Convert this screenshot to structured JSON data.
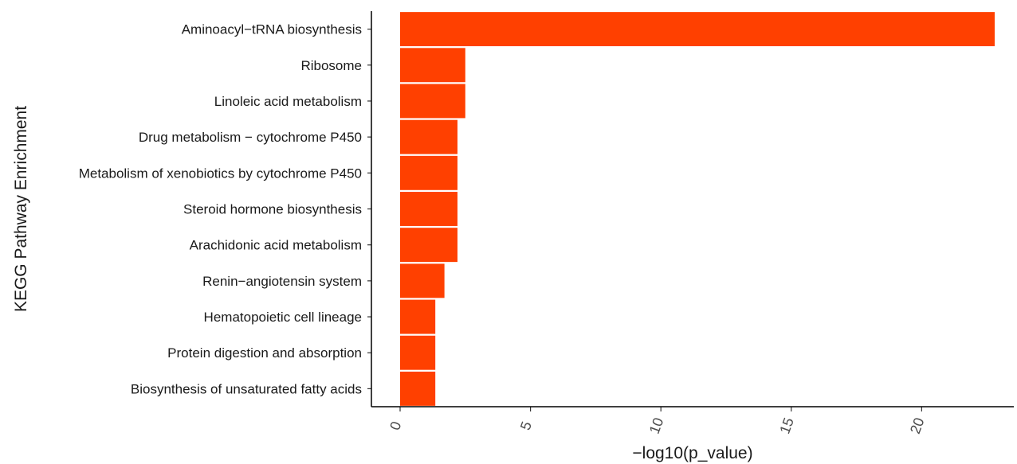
{
  "chart_data": {
    "type": "bar",
    "orientation": "horizontal",
    "categories": [
      "Aminoacyl−tRNA biosynthesis",
      "Ribosome",
      "Linoleic acid metabolism",
      "Drug metabolism − cytochrome P450",
      "Metabolism of xenobiotics by cytochrome P450",
      "Steroid hormone biosynthesis",
      "Arachidonic acid metabolism",
      "Renin−angiotensin system",
      "Hematopoietic cell lineage",
      "Protein digestion and absorption",
      "Biosynthesis of unsaturated fatty acids"
    ],
    "values": [
      22.8,
      2.5,
      2.5,
      2.2,
      2.2,
      2.2,
      2.2,
      1.7,
      1.35,
      1.35,
      1.35
    ],
    "xlabel": "−log10(p_value)",
    "ylabel": "KEGG Pathway Enrichment",
    "xlim": [
      -1,
      23.5
    ],
    "xticks": [
      0,
      5,
      10,
      15,
      20
    ],
    "grid": false,
    "bar_color": "#ff4000"
  }
}
